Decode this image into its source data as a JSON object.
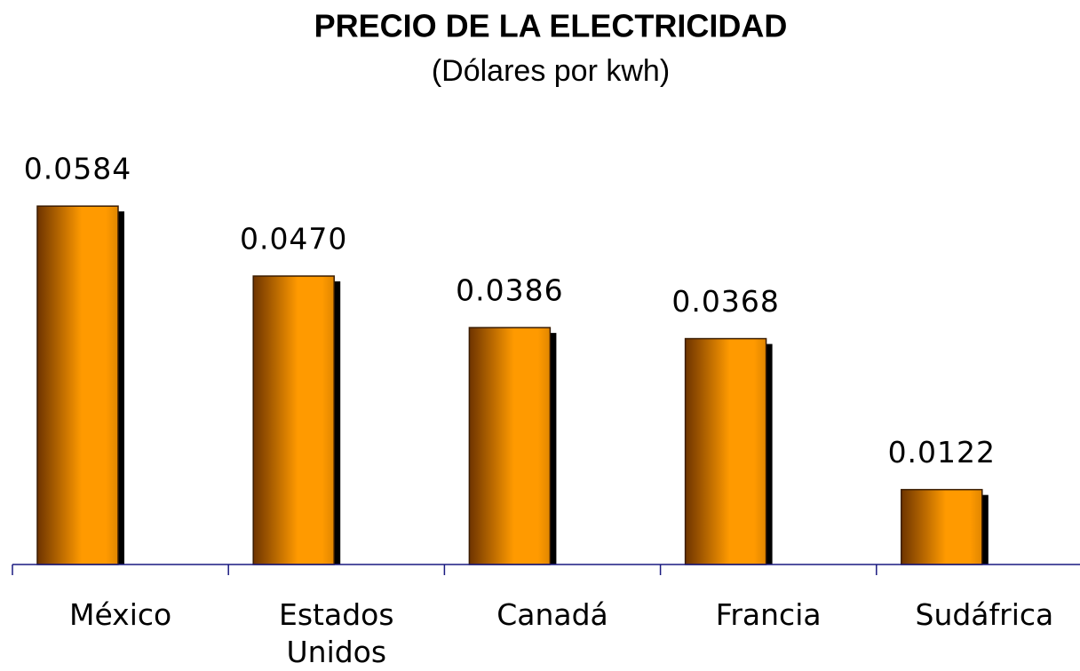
{
  "chart_data": {
    "type": "bar",
    "title": "PRECIO DE LA ELECTRICIDAD",
    "subtitle": "(Dólares por kwh)",
    "categories": [
      "México",
      "Estados Unidos",
      "Canadá",
      "Francia",
      "Sudáfrica"
    ],
    "values": [
      0.0584,
      0.047,
      0.0386,
      0.0368,
      0.0122
    ],
    "value_labels": [
      "0.0584",
      "0.0470",
      "0.0386",
      "0.0368",
      "0.0122"
    ],
    "color": "#ff9900",
    "ylim": [
      0,
      0.07
    ]
  }
}
